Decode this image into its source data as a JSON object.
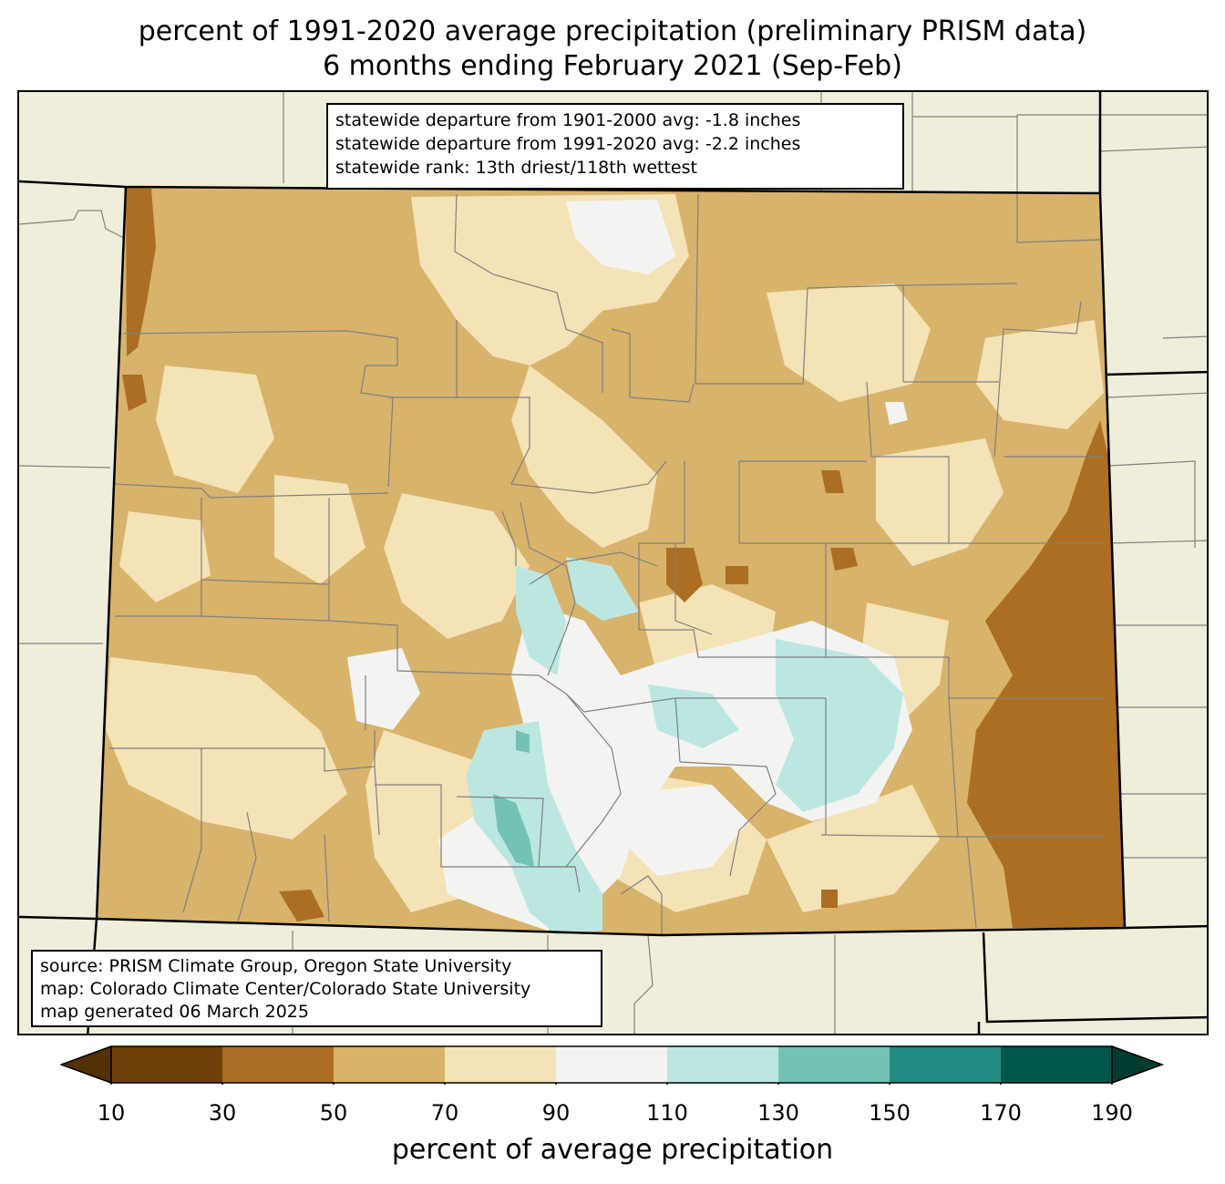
{
  "title": {
    "line1": "percent of 1991-2020 average precipitation (preliminary PRISM data)",
    "line2": "6 months ending February 2021 (Sep-Feb)"
  },
  "stats": {
    "line1": "statewide departure from 1901-2000 avg: -1.8 inches",
    "line2": "statewide departure from 1991-2020 avg: -2.2 inches",
    "line3": "statewide rank: 13th driest/118th wettest"
  },
  "source": {
    "line1": "source: PRISM Climate Group, Oregon State University",
    "line2": "map: Colorado Climate Center/Colorado State University",
    "line3": "map generated 06 March 2025"
  },
  "colorbar": {
    "label": "percent of average precipitation",
    "ticks": [
      "10",
      "30",
      "50",
      "70",
      "90",
      "110",
      "130",
      "150",
      "170",
      "190"
    ],
    "colors": [
      "#6f3f0a",
      "#ab6e23",
      "#d8b36b",
      "#f4e3b7",
      "#f3f4f2",
      "#bce7e1",
      "#72c3b5",
      "#238a81",
      "#00564c"
    ],
    "under_color": "#543005",
    "over_color": "#003c30"
  },
  "map_colors": {
    "background": "#efeeda",
    "county_lines": "#808080",
    "state_lines": "#000000"
  }
}
